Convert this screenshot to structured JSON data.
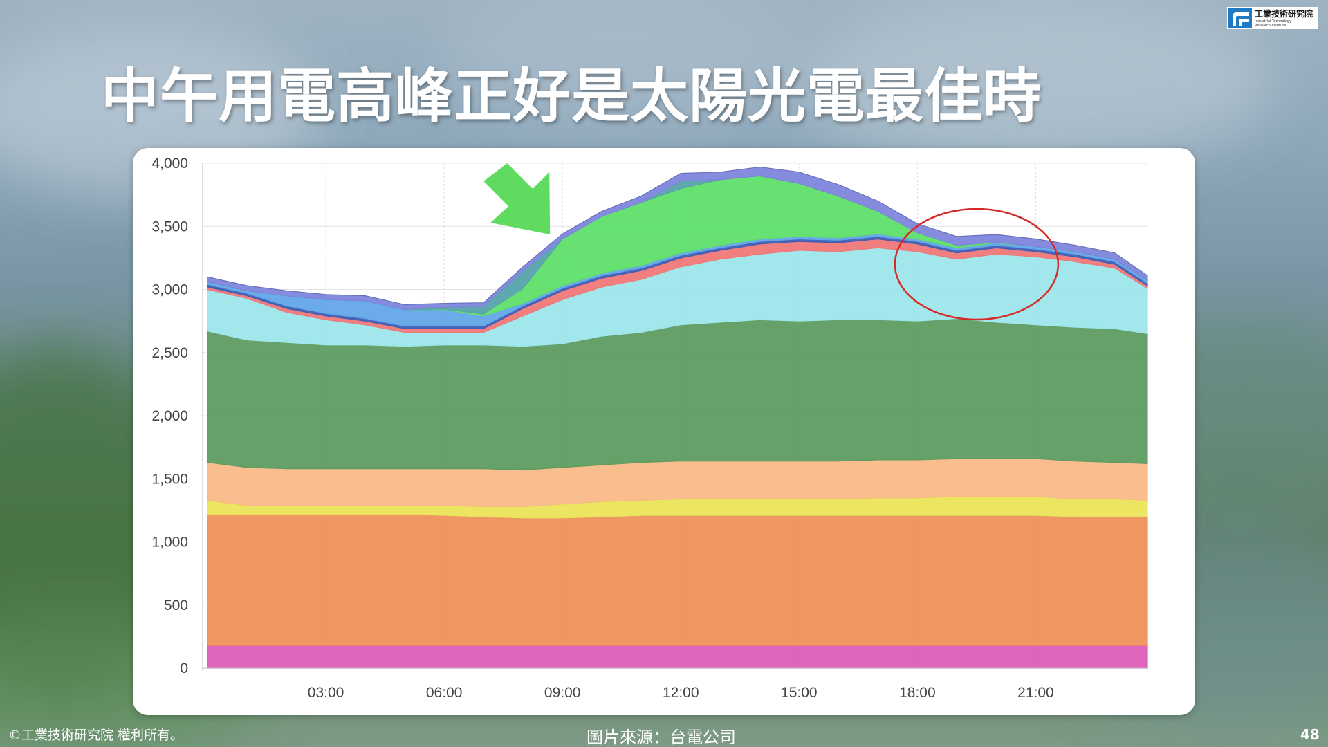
{
  "slide": {
    "title": "中午用電高峰正好是太陽光電最佳時",
    "logo": {
      "name_cn": "工業技術研究院",
      "name_en_1": "Industrial Technology",
      "name_en_2": "Research Institute"
    },
    "copyright": "©工業技術研究院  權利所有。",
    "source": "圖片來源：台電公司",
    "page_number": "48"
  },
  "chart_data": {
    "type": "area",
    "stacked": true,
    "x": [
      "00:00",
      "01:00",
      "02:00",
      "03:00",
      "04:00",
      "05:00",
      "06:00",
      "07:00",
      "08:00",
      "09:00",
      "10:00",
      "11:00",
      "12:00",
      "13:00",
      "14:00",
      "15:00",
      "16:00",
      "17:00",
      "18:00",
      "19:00",
      "20:00",
      "21:00",
      "22:00",
      "23:00",
      "23:50"
    ],
    "x_ticks": [
      "03:00",
      "06:00",
      "09:00",
      "12:00",
      "15:00",
      "18:00",
      "21:00"
    ],
    "y_ticks": [
      "4,000",
      "3,500",
      "3,000",
      "2,500",
      "2,000",
      "1,500",
      "1,000",
      "500",
      "0"
    ],
    "ylim": [
      0,
      4000
    ],
    "grid": true,
    "series": [
      {
        "color": "#dd5db8",
        "values": [
          180,
          180,
          180,
          180,
          180,
          180,
          180,
          180,
          180,
          180,
          180,
          180,
          180,
          180,
          180,
          180,
          180,
          180,
          180,
          180,
          180,
          180,
          180,
          180,
          180
        ]
      },
      {
        "color": "#ee9158",
        "values": [
          1040,
          1040,
          1040,
          1040,
          1040,
          1040,
          1030,
          1020,
          1010,
          1010,
          1020,
          1030,
          1030,
          1030,
          1030,
          1030,
          1030,
          1030,
          1030,
          1030,
          1030,
          1030,
          1020,
          1020,
          1020
        ]
      },
      {
        "color": "#ebe45a",
        "values": [
          110,
          70,
          70,
          70,
          70,
          70,
          80,
          80,
          90,
          110,
          120,
          120,
          130,
          130,
          130,
          130,
          130,
          140,
          140,
          150,
          150,
          150,
          140,
          140,
          130
        ]
      },
      {
        "color": "#f9b988",
        "values": [
          300,
          300,
          290,
          290,
          290,
          290,
          290,
          300,
          290,
          290,
          290,
          300,
          300,
          300,
          300,
          300,
          300,
          300,
          300,
          300,
          300,
          300,
          300,
          290,
          290
        ]
      },
      {
        "color": "#5d9c60",
        "values": [
          1040,
          1010,
          1000,
          980,
          980,
          970,
          980,
          980,
          980,
          980,
          1020,
          1030,
          1080,
          1100,
          1120,
          1110,
          1120,
          1110,
          1100,
          1110,
          1080,
          1060,
          1060,
          1060,
          1030
        ]
      },
      {
        "color": "#9de6ea",
        "values": [
          330,
          330,
          240,
          200,
          160,
          110,
          100,
          100,
          240,
          350,
          390,
          420,
          460,
          500,
          520,
          560,
          540,
          570,
          550,
          470,
          540,
          540,
          520,
          480,
          360
        ]
      },
      {
        "color": "#f07878",
        "values": [
          20,
          20,
          30,
          30,
          30,
          30,
          30,
          30,
          60,
          70,
          70,
          70,
          70,
          70,
          80,
          70,
          70,
          70,
          60,
          50,
          50,
          40,
          40,
          30,
          20
        ]
      },
      {
        "color": "#3e5eb6",
        "values": [
          20,
          20,
          20,
          20,
          20,
          20,
          20,
          20,
          20,
          20,
          20,
          20,
          20,
          20,
          20,
          20,
          20,
          20,
          20,
          20,
          20,
          20,
          20,
          20,
          20
        ]
      },
      {
        "color": "#63a6e8",
        "values": [
          20,
          20,
          80,
          110,
          140,
          130,
          130,
          80,
          20,
          20,
          20,
          20,
          20,
          20,
          20,
          20,
          20,
          20,
          20,
          20,
          20,
          20,
          20,
          20,
          20
        ]
      },
      {
        "color": "#5fe06a",
        "values": [
          0,
          0,
          0,
          0,
          0,
          0,
          5,
          15,
          120,
          370,
          450,
          500,
          510,
          520,
          500,
          420,
          330,
          180,
          50,
          20,
          5,
          0,
          0,
          0,
          0
        ]
      },
      {
        "color": "#56a3ab",
        "values": [
          0,
          0,
          0,
          0,
          0,
          0,
          15,
          60,
          140,
          0,
          0,
          0,
          60,
          0,
          0,
          0,
          0,
          0,
          0,
          0,
          0,
          0,
          0,
          0,
          0
        ]
      },
      {
        "color": "#7e86dc",
        "values": [
          40,
          40,
          40,
          40,
          40,
          40,
          30,
          30,
          30,
          40,
          40,
          50,
          60,
          60,
          70,
          90,
          90,
          80,
          70,
          70,
          60,
          60,
          50,
          50,
          40
        ]
      }
    ],
    "annotations": [
      {
        "type": "arrow",
        "color": "#5fdc5f",
        "points_to": "09:00"
      },
      {
        "type": "ellipse",
        "color": "#d42a2a",
        "center_x": "19:30",
        "center_y": 3200
      }
    ]
  },
  "colors": {
    "card": "#ffffff",
    "title": "#ffffff",
    "arrow": "#5fdc5f",
    "ellipse": "#d42a2a"
  }
}
